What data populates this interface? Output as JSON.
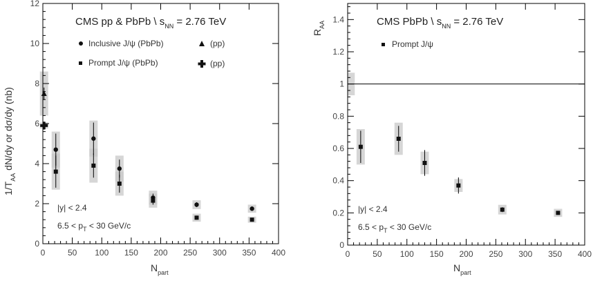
{
  "chart_data": [
    {
      "type": "scatter",
      "title": "CMS pp & PbPb \\ s",
      "title_sub": "NN",
      "title_tail": " = 2.76 TeV",
      "xlabel": "N",
      "xlabel_sub": "part",
      "ylabel": "1/T",
      "ylabel_sub": "AA",
      "ylabel_tail": " dN/dy  or  dσ/dy (nb)",
      "xlim": [
        0,
        400
      ],
      "ylim": [
        0,
        12
      ],
      "xticks": [
        "0",
        "50",
        "100",
        "150",
        "200",
        "250",
        "300",
        "350",
        "400"
      ],
      "yticks": [
        "0",
        "2",
        "4",
        "6",
        "8",
        "10",
        "12"
      ],
      "annotation_1": "|y| < 2.4",
      "annotation_2a": "6.5 < p",
      "annotation_2sub": "T",
      "annotation_2b": " < 30 GeV/c",
      "legend_position": "top",
      "series": [
        {
          "name": "Inclusive J/ψ (PbPb)",
          "marker": "circle",
          "x": [
            22,
            86,
            130,
            187,
            261,
            355
          ],
          "y": [
            4.7,
            5.25,
            3.75,
            2.3,
            1.95,
            1.75
          ],
          "err": [
            0.8,
            0.8,
            0.45,
            0.2,
            0.12,
            0.1
          ],
          "sys": [
            0.9,
            0.9,
            0.65,
            0.35,
            0.22,
            0.2
          ]
        },
        {
          "name": "Prompt J/ψ (PbPb)",
          "marker": "square",
          "x": [
            22,
            86,
            130,
            187,
            261,
            355
          ],
          "y": [
            3.6,
            3.9,
            3.0,
            2.15,
            1.3,
            1.2
          ],
          "err": [
            0.8,
            0.6,
            0.45,
            0.2,
            0.1,
            0.08
          ],
          "sys": [
            0.9,
            0.85,
            0.6,
            0.35,
            0.2,
            0.15
          ]
        },
        {
          "name": "(pp)",
          "marker": "triangle",
          "x": [
            2
          ],
          "y": [
            7.5
          ],
          "err": [
            0.3
          ],
          "sys": [
            1.1
          ]
        },
        {
          "name": "(pp)",
          "marker": "cross",
          "x": [
            2
          ],
          "y": [
            5.9
          ],
          "err": [
            0.2
          ],
          "sys": [
            0.15
          ]
        }
      ]
    },
    {
      "type": "scatter",
      "title": "CMS PbPb \\ s",
      "title_sub": "NN",
      "title_tail": " = 2.76 TeV",
      "xlabel": "N",
      "xlabel_sub": "part",
      "ylabel": "R",
      "ylabel_sub": "AA",
      "xlim": [
        0,
        400
      ],
      "ylim": [
        0,
        1.5
      ],
      "xticks": [
        "0",
        "50",
        "100",
        "150",
        "200",
        "250",
        "300",
        "350",
        "400"
      ],
      "yticks": [
        "0",
        "0.2",
        "0.4",
        "0.6",
        "0.8",
        "1",
        "1.2",
        "1.4"
      ],
      "annotation_1": "|y| < 2.4",
      "annotation_2a": "6.5 < p",
      "annotation_2sub": "T",
      "annotation_2b": " < 30 GeV/c",
      "reference_line_y": 1,
      "reference_box": {
        "x": [
          0,
          12
        ],
        "y": [
          0.93,
          1.07
        ]
      },
      "legend_position": "top",
      "series": [
        {
          "name": "Prompt J/ψ",
          "marker": "square",
          "x": [
            22,
            86,
            130,
            187,
            261,
            355
          ],
          "y": [
            0.61,
            0.66,
            0.51,
            0.37,
            0.22,
            0.2
          ],
          "err": [
            0.1,
            0.08,
            0.08,
            0.05,
            0.015,
            0.012
          ],
          "sys": [
            0.11,
            0.1,
            0.07,
            0.04,
            0.03,
            0.025
          ]
        }
      ]
    }
  ]
}
